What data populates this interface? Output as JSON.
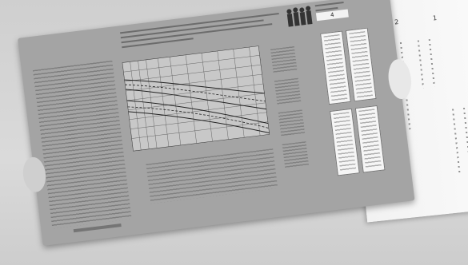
{
  "insert": {
    "numbers": [
      "2",
      "1"
    ]
  },
  "card": {
    "person_box_count": "4"
  },
  "colors": {
    "card": "#a4a4a4",
    "insert": "#f5f5f5",
    "background": "#d4d4d4"
  }
}
